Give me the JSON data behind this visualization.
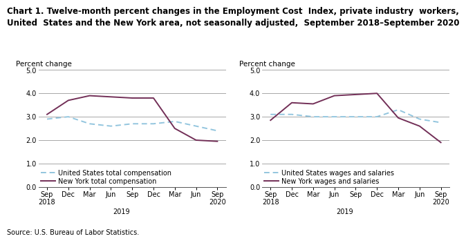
{
  "title_line1": "Chart 1. Twelve-month percent changes in the Employment Cost  Index, private industry  workers,",
  "title_line2": "United  States and the New York area, not seasonally adjusted,  September 2018–September 2020",
  "source": "Source: U.S. Bureau of Labor Statistics.",
  "x_tick_labels": [
    "Sep\n2018",
    "Dec",
    "Mar",
    "Jun",
    "Sep",
    "Dec",
    "Mar",
    "Jun",
    "Sep\n2020"
  ],
  "x_positions": [
    0,
    1,
    2,
    3,
    4,
    5,
    6,
    7,
    8
  ],
  "ylim": [
    0.0,
    5.0
  ],
  "yticks": [
    0.0,
    1.0,
    2.0,
    3.0,
    4.0,
    5.0
  ],
  "ylabel": "Percent change",
  "chart1": {
    "us_vals": [
      2.9,
      3.0,
      2.7,
      2.6,
      2.7,
      2.7,
      2.8,
      2.6,
      2.4
    ],
    "ny_vals": [
      3.1,
      3.7,
      3.9,
      3.85,
      3.8,
      3.8,
      2.5,
      2.0,
      1.95
    ],
    "legend_us": "United States total compensation",
    "legend_ny": "New York total compensation"
  },
  "chart2": {
    "us_vals": [
      3.1,
      3.1,
      3.0,
      3.0,
      3.0,
      3.0,
      3.3,
      2.9,
      2.75
    ],
    "ny_vals": [
      2.85,
      3.6,
      3.55,
      3.9,
      3.95,
      4.0,
      2.95,
      2.6,
      1.9
    ],
    "legend_us": "United States wages and salaries",
    "legend_ny": "New York wages and salaries"
  },
  "us_color": "#92c5de",
  "ny_color": "#722f57",
  "grid_color": "#999999",
  "spine_color": "#555555",
  "background_color": "#ffffff",
  "title_fontsize": 8.5,
  "tick_fontsize": 7,
  "legend_fontsize": 7,
  "ylabel_fontsize": 7.5,
  "source_fontsize": 7,
  "linewidth": 1.4
}
